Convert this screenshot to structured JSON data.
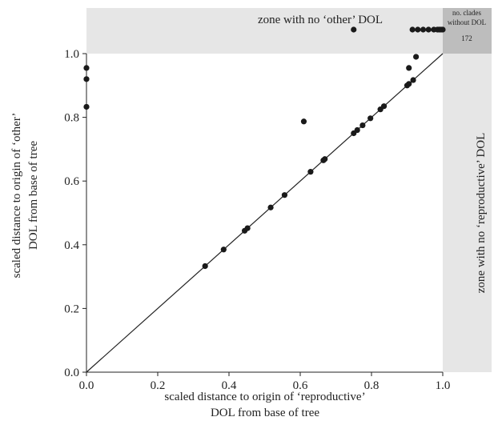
{
  "chart_data": {
    "type": "scatter",
    "xlabel_lines": [
      "scaled distance to origin of ‘reproductive’",
      "DOL from base of tree"
    ],
    "ylabel_lines": [
      "scaled distance to origin of ‘other’",
      "DOL from base of tree"
    ],
    "xlim": [
      0,
      1
    ],
    "ylim": [
      0,
      1
    ],
    "xticks": [
      "0.0",
      "0.2",
      "0.4",
      "0.6",
      "0.8",
      "1.0"
    ],
    "yticks": [
      "0.0",
      "0.2",
      "0.4",
      "0.6",
      "0.8",
      "1.0"
    ],
    "zone_top_label": "zone with no ‘other’ DOL",
    "zone_right_label": "zone with no ‘reproductive’ DOL",
    "corner_label_lines": [
      "no. clades",
      "without DOL"
    ],
    "corner_count": "172",
    "diagonal_line": {
      "x": [
        0,
        1
      ],
      "y": [
        0,
        1
      ]
    },
    "points": [
      {
        "x": 0.0,
        "y": 0.955
      },
      {
        "x": 0.0,
        "y": 0.92
      },
      {
        "x": 0.0,
        "y": 0.833
      },
      {
        "x": 0.333,
        "y": 0.333
      },
      {
        "x": 0.385,
        "y": 0.385
      },
      {
        "x": 0.444,
        "y": 0.444
      },
      {
        "x": 0.452,
        "y": 0.452
      },
      {
        "x": 0.517,
        "y": 0.517
      },
      {
        "x": 0.556,
        "y": 0.556
      },
      {
        "x": 0.61,
        "y": 0.787
      },
      {
        "x": 0.629,
        "y": 0.629
      },
      {
        "x": 0.665,
        "y": 0.665
      },
      {
        "x": 0.669,
        "y": 0.669
      },
      {
        "x": 0.75,
        "y": 0.75
      },
      {
        "x": 0.76,
        "y": 0.76
      },
      {
        "x": 0.775,
        "y": 0.775
      },
      {
        "x": 0.797,
        "y": 0.797
      },
      {
        "x": 0.825,
        "y": 0.825
      },
      {
        "x": 0.835,
        "y": 0.835
      },
      {
        "x": 0.9,
        "y": 0.9
      },
      {
        "x": 0.905,
        "y": 0.905
      },
      {
        "x": 0.905,
        "y": 0.955
      },
      {
        "x": 0.917,
        "y": 0.917
      },
      {
        "x": 0.925,
        "y": 0.99
      }
    ],
    "no_other_dol_points_x": [
      0.75,
      0.915,
      0.93,
      0.945,
      0.96,
      0.975,
      0.985,
      0.99,
      0.995,
      1.0
    ]
  }
}
